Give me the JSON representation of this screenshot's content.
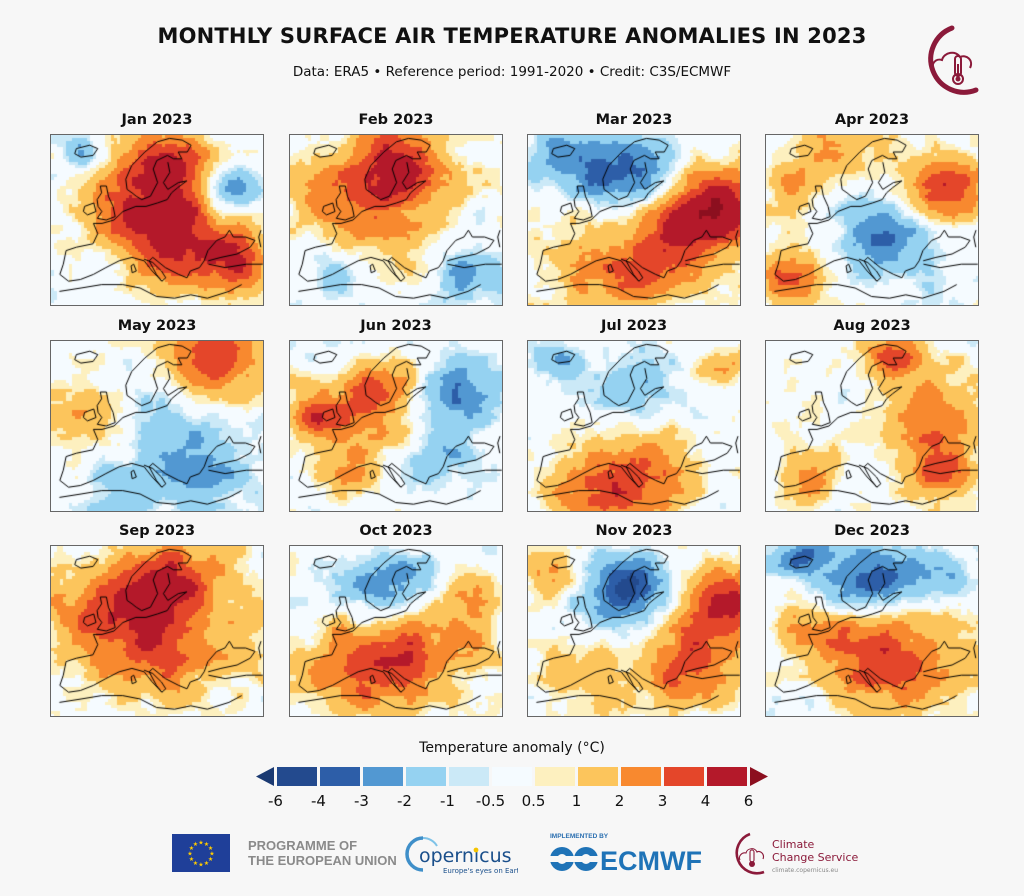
{
  "header": {
    "title": "MONTHLY SURFACE AIR TEMPERATURE ANOMALIES IN 2023",
    "subtitle": "Data: ERA5 • Reference period: 1991-2020 • Credit: C3S/ECMWF",
    "logo_icon": "c3s-thermometer-cloud-icon"
  },
  "colors": {
    "brand_maroon": "#8b1a3a",
    "bins": [
      "#1b3a72",
      "#234a8e",
      "#2d5ea8",
      "#5298d2",
      "#95d2f1",
      "#cbe9f7",
      "#f5fbff",
      "#fdf0bf",
      "#fcc55c",
      "#f8892f",
      "#e4462a",
      "#b4192a",
      "#8c0f1f"
    ]
  },
  "chart_data": {
    "type": "heatmap",
    "title": "MONTHLY SURFACE AIR TEMPERATURE ANOMALIES IN 2023",
    "subtitle": "Data: ERA5 • Reference period: 1991-2020 • Credit: C3S/ECMWF",
    "variable": "Surface air temperature anomaly",
    "units": "°C",
    "reference_period": "1991-2020",
    "region": "Europe",
    "colorbar": {
      "label": "Temperature anomaly (°C)",
      "ticks": [
        "-6",
        "-4",
        "-3",
        "-2",
        "-1",
        "-0.5",
        "0.5",
        "1",
        "2",
        "3",
        "4",
        "6"
      ],
      "bin_edges": [
        -6,
        -4,
        -3,
        -2,
        -1,
        -0.5,
        0.5,
        1,
        2,
        3,
        4,
        6
      ],
      "extend": "both",
      "range": [
        -6,
        6
      ]
    },
    "panels": [
      {
        "label": "Jan 2023",
        "summary": "Strong warmth over central/eastern Europe and Scandinavia (+3 to +4), cold over NW Russia and Iceland, near-normal Iberia/Atlantic",
        "blobs": [
          [
            0.55,
            0.55,
            0.28,
            4.2
          ],
          [
            0.55,
            0.15,
            0.2,
            3.5
          ],
          [
            0.85,
            0.3,
            0.14,
            -3.2
          ],
          [
            0.15,
            0.1,
            0.1,
            -2.2
          ],
          [
            0.25,
            0.75,
            0.15,
            -0.8
          ],
          [
            0.85,
            0.75,
            0.2,
            3.2
          ],
          [
            0.35,
            0.4,
            0.25,
            2.0
          ]
        ]
      },
      {
        "label": "Feb 2023",
        "summary": "Warm Scandinavia and northern Europe (+2 to +4), cool Iberia and Turkey/SE",
        "blobs": [
          [
            0.5,
            0.15,
            0.22,
            3.8
          ],
          [
            0.45,
            0.45,
            0.35,
            2.2
          ],
          [
            0.2,
            0.3,
            0.2,
            1.6
          ],
          [
            0.2,
            0.8,
            0.15,
            -2.0
          ],
          [
            0.85,
            0.8,
            0.18,
            -2.4
          ],
          [
            0.9,
            0.45,
            0.1,
            -0.8
          ]
        ]
      },
      {
        "label": "Mar 2023",
        "summary": "Cold Scandinavia and Iceland (-2 to -4), very warm eastern Europe/Russia (+4), warm south",
        "blobs": [
          [
            0.5,
            0.2,
            0.2,
            -3.6
          ],
          [
            0.15,
            0.12,
            0.15,
            -3.0
          ],
          [
            0.3,
            0.25,
            0.12,
            -1.5
          ],
          [
            0.9,
            0.4,
            0.22,
            4.6
          ],
          [
            0.7,
            0.55,
            0.25,
            2.8
          ],
          [
            0.3,
            0.75,
            0.3,
            1.6
          ],
          [
            0.5,
            0.85,
            0.25,
            1.5
          ]
        ]
      },
      {
        "label": "Apr 2023",
        "summary": "Cool central/southeast Europe (-1 to -3), warm Iberia and western Russia (+3 to +4)",
        "blobs": [
          [
            0.55,
            0.6,
            0.22,
            -2.6
          ],
          [
            0.45,
            0.35,
            0.12,
            -1.2
          ],
          [
            0.85,
            0.3,
            0.2,
            3.6
          ],
          [
            0.1,
            0.85,
            0.15,
            3.8
          ],
          [
            0.1,
            0.3,
            0.15,
            1.6
          ],
          [
            0.3,
            0.05,
            0.25,
            2.0
          ],
          [
            0.75,
            0.75,
            0.15,
            -0.8
          ]
        ]
      },
      {
        "label": "May 2023",
        "summary": "Warm far north/Kola (+3 to +4), cool central and SE Europe (-1 to -2)",
        "blobs": [
          [
            0.75,
            0.1,
            0.25,
            3.6
          ],
          [
            0.1,
            0.4,
            0.2,
            1.7
          ],
          [
            0.65,
            0.55,
            0.3,
            -1.5
          ],
          [
            0.3,
            0.9,
            0.15,
            -1.6
          ],
          [
            0.7,
            0.8,
            0.18,
            -2.0
          ],
          [
            0.4,
            0.3,
            0.15,
            -0.7
          ]
        ]
      },
      {
        "label": "Jun 2023",
        "summary": "Warm British Isles, Scandinavia, western Europe (+2 to +3), cool western Russia (-2)",
        "blobs": [
          [
            0.3,
            0.45,
            0.25,
            2.8
          ],
          [
            0.45,
            0.25,
            0.15,
            2.6
          ],
          [
            0.1,
            0.4,
            0.15,
            2.0
          ],
          [
            0.8,
            0.3,
            0.22,
            -2.4
          ],
          [
            0.7,
            0.7,
            0.2,
            -1.4
          ],
          [
            0.3,
            0.8,
            0.12,
            1.6
          ]
        ]
      },
      {
        "label": "Jul 2023",
        "summary": "Cool Scandinavia/Baltic (-1 to -2), very warm Mediterranean and North Africa (+3 to +4)",
        "blobs": [
          [
            0.5,
            0.28,
            0.22,
            -1.8
          ],
          [
            0.15,
            0.1,
            0.1,
            -2.0
          ],
          [
            0.35,
            0.9,
            0.25,
            3.6
          ],
          [
            0.6,
            0.7,
            0.25,
            2.0
          ],
          [
            0.9,
            0.15,
            0.12,
            2.6
          ],
          [
            0.8,
            0.6,
            0.1,
            -0.9
          ]
        ]
      },
      {
        "label": "Aug 2023",
        "summary": "Warm eastern Europe/Russia and SE (+2 to +3), near-normal NW Europe and Scandinavia",
        "blobs": [
          [
            0.75,
            0.4,
            0.25,
            2.7
          ],
          [
            0.8,
            0.75,
            0.18,
            3.0
          ],
          [
            0.2,
            0.8,
            0.15,
            2.2
          ],
          [
            0.45,
            0.35,
            0.15,
            -0.9
          ],
          [
            0.2,
            0.45,
            0.2,
            0.2
          ],
          [
            0.6,
            0.05,
            0.15,
            3.2
          ]
        ]
      },
      {
        "label": "Sep 2023",
        "summary": "Exceptionally warm across most of Europe (+3 to +4), near-normal Iberia and far south",
        "blobs": [
          [
            0.45,
            0.55,
            0.35,
            3.6
          ],
          [
            0.55,
            0.2,
            0.25,
            3.5
          ],
          [
            0.15,
            0.35,
            0.2,
            1.6
          ],
          [
            0.15,
            0.8,
            0.12,
            -0.3
          ],
          [
            0.4,
            0.95,
            0.15,
            -0.4
          ],
          [
            0.9,
            0.6,
            0.15,
            1.2
          ]
        ]
      },
      {
        "label": "Oct 2023",
        "summary": "Cold Scandinavia (-2 to -4), warm central and southern Europe (+2 to +4)",
        "blobs": [
          [
            0.48,
            0.22,
            0.2,
            -3.2
          ],
          [
            0.25,
            0.2,
            0.15,
            -0.5
          ],
          [
            0.55,
            0.62,
            0.3,
            3.2
          ],
          [
            0.25,
            0.75,
            0.25,
            2.3
          ],
          [
            0.9,
            0.5,
            0.15,
            0.8
          ],
          [
            0.85,
            0.25,
            0.15,
            1.5
          ]
        ]
      },
      {
        "label": "Nov 2023",
        "summary": "Very cold Scandinavia (-3 to -6), very warm eastern Europe/Russia (+3 to +4)",
        "blobs": [
          [
            0.47,
            0.25,
            0.2,
            -4.2
          ],
          [
            0.3,
            0.35,
            0.2,
            -0.4
          ],
          [
            0.9,
            0.35,
            0.22,
            4.2
          ],
          [
            0.75,
            0.7,
            0.22,
            3.2
          ],
          [
            0.35,
            0.75,
            0.25,
            1.4
          ],
          [
            0.1,
            0.15,
            0.15,
            1.8
          ]
        ]
      },
      {
        "label": "Dec 2023",
        "summary": "Cold Scandinavia and northern Russia (-2 to -4), warm central/eastern Europe and Balkans (+2 to +4)",
        "blobs": [
          [
            0.45,
            0.2,
            0.22,
            -3.4
          ],
          [
            0.75,
            0.15,
            0.18,
            -2.2
          ],
          [
            0.15,
            0.05,
            0.12,
            -3.0
          ],
          [
            0.65,
            0.7,
            0.3,
            3.2
          ],
          [
            0.35,
            0.55,
            0.25,
            2.2
          ],
          [
            0.15,
            0.8,
            0.12,
            -0.6
          ],
          [
            0.15,
            0.45,
            0.15,
            0.8
          ]
        ]
      }
    ]
  },
  "legend": {
    "label": "Temperature anomaly (°C)",
    "ticks": [
      "-6",
      "-4",
      "-3",
      "-2",
      "-1",
      "-0.5",
      "0.5",
      "1",
      "2",
      "3",
      "4",
      "6"
    ]
  },
  "footer": {
    "eu_text_line1": "PROGRAMME OF",
    "eu_text_line2": "THE EUROPEAN UNION",
    "copernicus_name": "opernicus",
    "copernicus_tagline": "Europe's eyes on Earth",
    "ecmwf_pre": "IMPLEMENTED BY",
    "ecmwf_name": "ECMWF",
    "c3s_line1": "Climate",
    "c3s_line2": "Change Service",
    "c3s_url": "climate.copernicus.eu"
  }
}
